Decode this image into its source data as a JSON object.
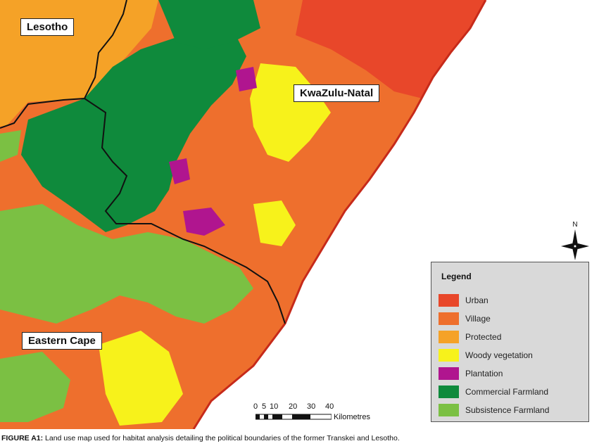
{
  "map": {
    "regions": {
      "lesotho": "Lesotho",
      "kwazulu_natal": "KwaZulu-Natal",
      "eastern_cape": "Eastern Cape"
    },
    "colors": {
      "sea": "#ffffff",
      "urban": "#e8472a",
      "village": "#ee6f2d",
      "protected": "#f5a227",
      "woody": "#f7f21b",
      "plantation": "#b0158f",
      "commercial": "#0f8a3c",
      "subsistence": "#7bc043",
      "boundary": "#111111",
      "coast": "#c62a1a"
    }
  },
  "legend": {
    "title": "Legend",
    "items": [
      {
        "label": "Urban",
        "color": "#e8472a"
      },
      {
        "label": "Village",
        "color": "#ee6f2d"
      },
      {
        "label": "Protected",
        "color": "#f5a227"
      },
      {
        "label": "Woody vegetation",
        "color": "#f7f21b"
      },
      {
        "label": "Plantation",
        "color": "#b0158f"
      },
      {
        "label": "Commercial Farmland",
        "color": "#0f8a3c"
      },
      {
        "label": "Subsistence Farmland",
        "color": "#7bc043"
      }
    ]
  },
  "north": {
    "label": "N"
  },
  "scale": {
    "ticks": [
      "0",
      "5",
      "10",
      "20",
      "30",
      "40"
    ],
    "unit": "Kilometres"
  },
  "caption": {
    "lead": "FIGURE A1:",
    "text": " Land use map used for habitat analysis detailing the political boundaries of the former Transkei and Lesotho."
  }
}
